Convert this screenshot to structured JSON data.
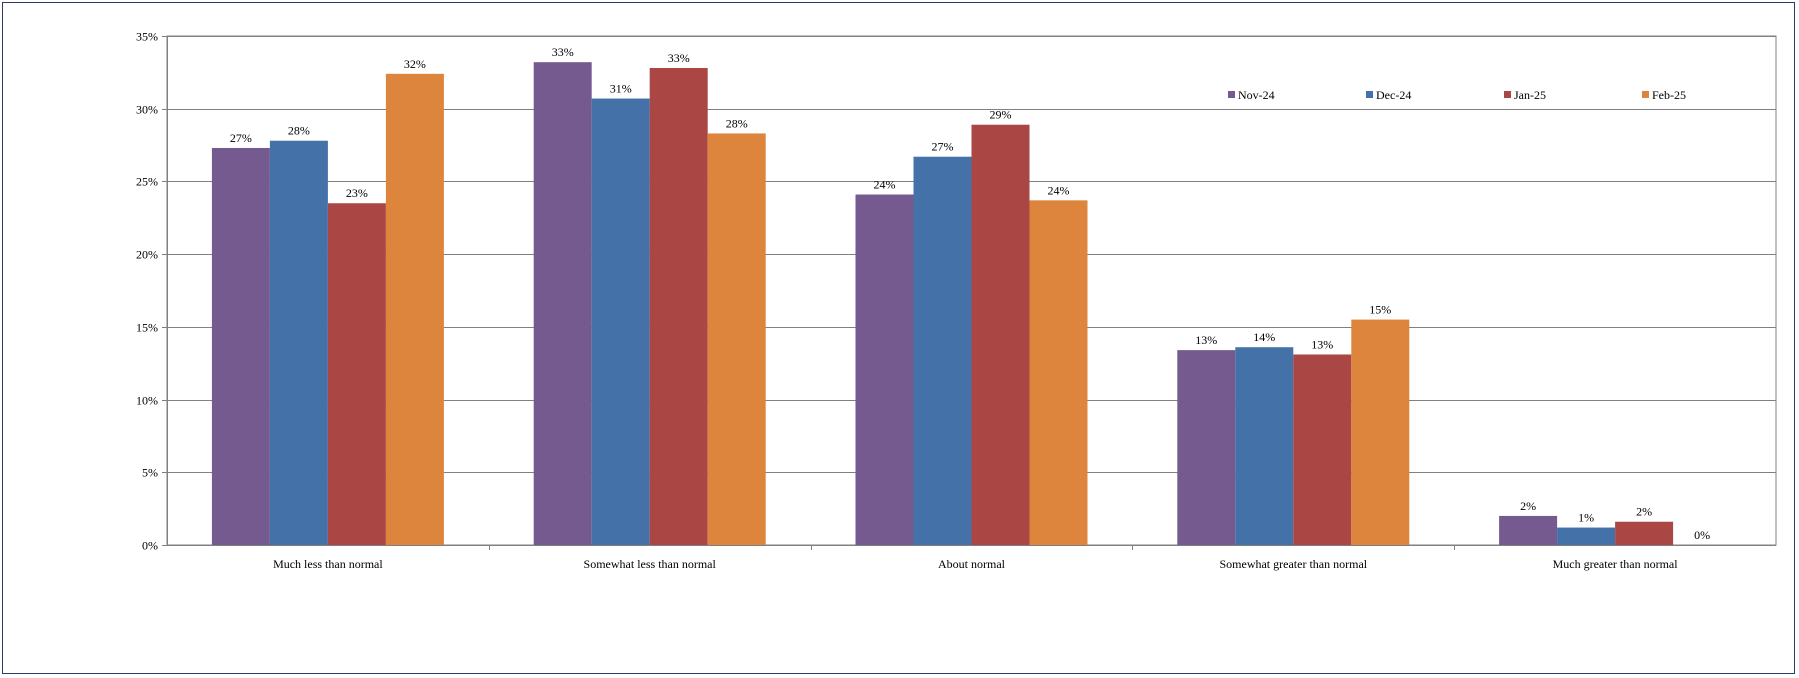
{
  "chart_data": {
    "type": "bar",
    "title": "",
    "xlabel": "",
    "ylabel": "",
    "categories": [
      "Much less than normal",
      "Somewhat less than normal",
      "About normal",
      "Somewhat greater than normal",
      "Much greater than normal"
    ],
    "series": [
      {
        "name": "Nov-24",
        "color": "#745a8f",
        "values": [
          27.3,
          33.2,
          24.1,
          13.4,
          2.0
        ],
        "labels": [
          "27%",
          "33%",
          "24%",
          "13%",
          "2%"
        ]
      },
      {
        "name": "Dec-24",
        "color": "#4472a8",
        "values": [
          27.8,
          30.7,
          26.7,
          13.6,
          1.2
        ],
        "labels": [
          "28%",
          "31%",
          "27%",
          "14%",
          "1%"
        ]
      },
      {
        "name": "Jan-25",
        "color": "#aa4644",
        "values": [
          23.5,
          32.8,
          28.9,
          13.1,
          1.6
        ],
        "labels": [
          "23%",
          "33%",
          "29%",
          "13%",
          "2%"
        ]
      },
      {
        "name": "Feb-25",
        "color": "#dd853c",
        "values": [
          32.4,
          28.3,
          23.7,
          15.5,
          0.0
        ],
        "labels": [
          "32%",
          "28%",
          "24%",
          "15%",
          "0%"
        ]
      }
    ],
    "ylim": [
      0,
      35
    ],
    "yticks": [
      0,
      5,
      10,
      15,
      20,
      25,
      30,
      35
    ],
    "ytick_labels": [
      "0%",
      "5%",
      "10%",
      "15%",
      "20%",
      "25%",
      "30%",
      "35%"
    ],
    "grid": true,
    "legend_position": "top-right"
  }
}
